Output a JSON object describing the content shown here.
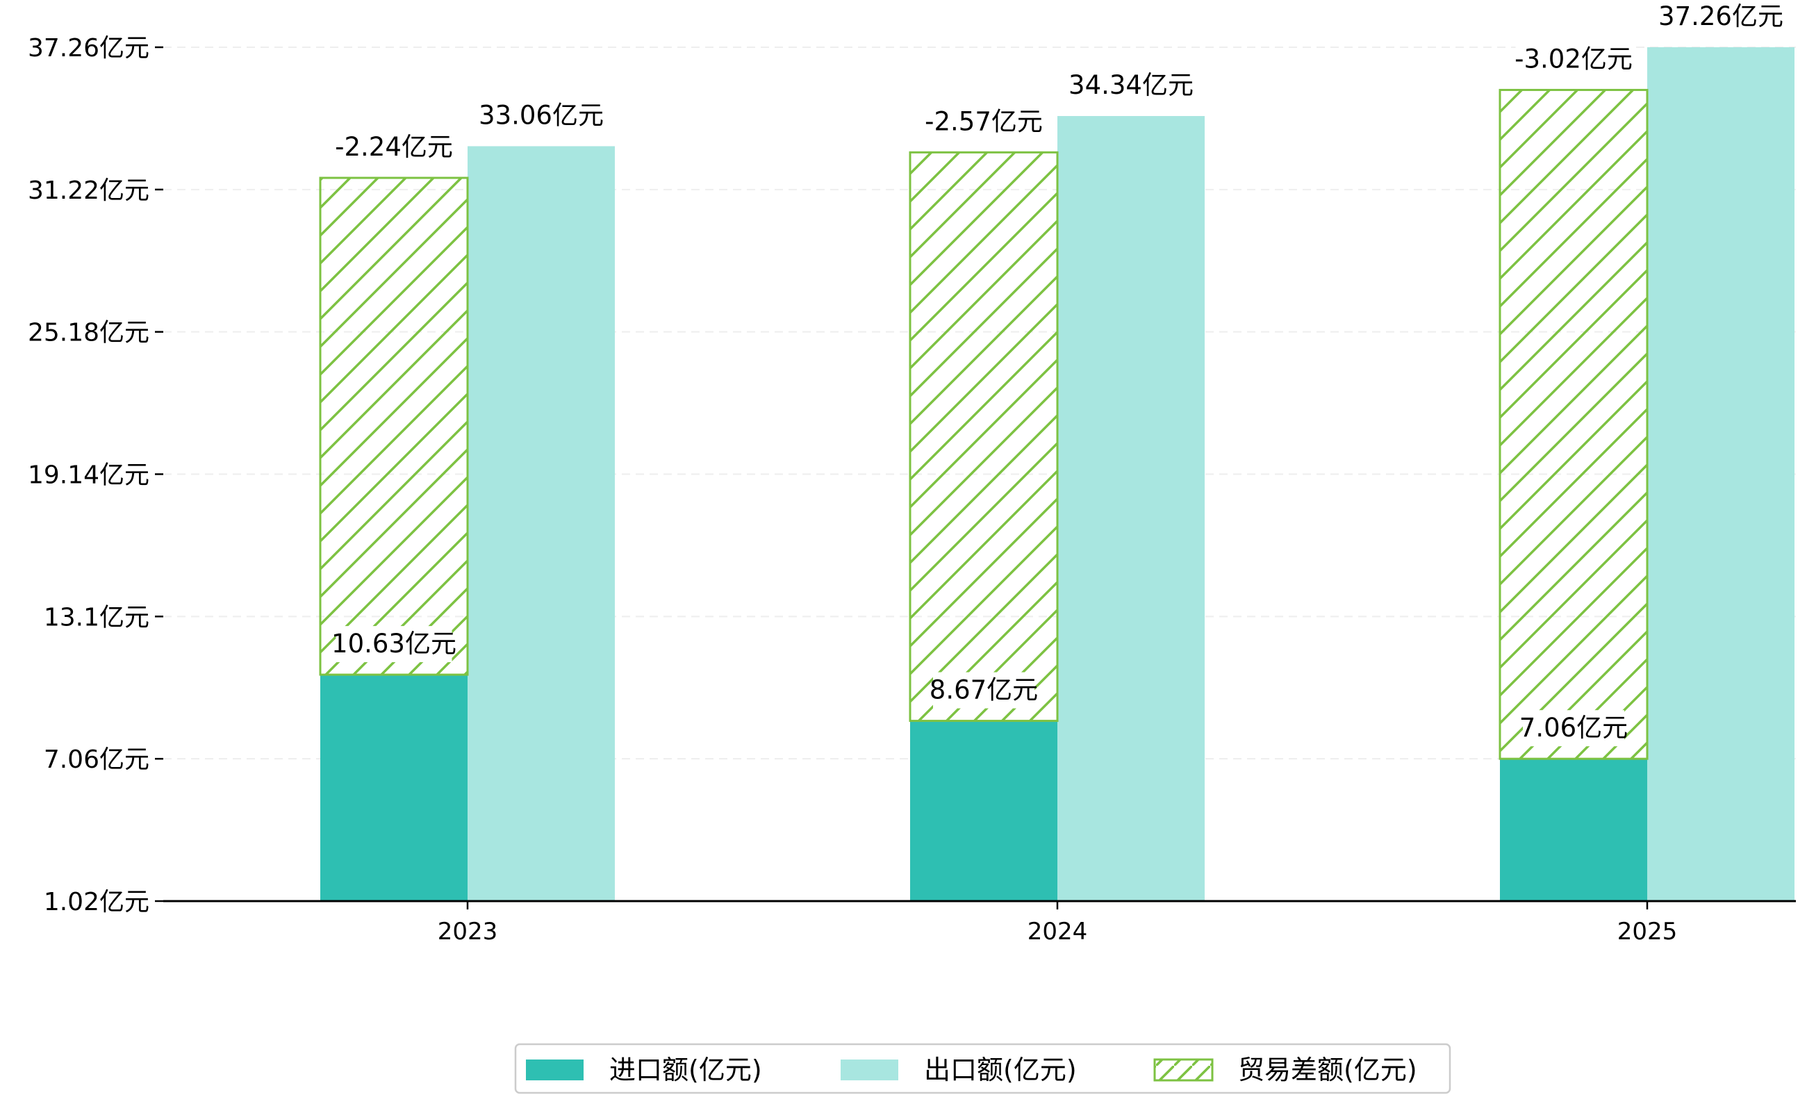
{
  "chart_data": {
    "type": "bar",
    "categories": [
      "2023",
      "2024",
      "2025"
    ],
    "unit_suffix": "亿元",
    "series": [
      {
        "name": "进口额(亿元)",
        "key": "import",
        "values": [
          10.63,
          8.67,
          7.06
        ],
        "color": "#2ebfb2",
        "labels": [
          "10.63亿元",
          "8.67亿元",
          "7.06亿元"
        ]
      },
      {
        "name": "出口额(亿元)",
        "key": "export",
        "values": [
          33.06,
          34.34,
          37.26
        ],
        "color": "#a8e6e0",
        "labels": [
          "33.06亿元",
          "34.34亿元",
          "37.26亿元"
        ]
      },
      {
        "name": "贸易差额(亿元)",
        "key": "balance",
        "values": [
          -2.24,
          -2.57,
          -3.02
        ],
        "color": "#7dc242",
        "pattern": "hatch",
        "labels": [
          "-2.24亿元",
          "-2.57亿元",
          "-3.02亿元"
        ]
      }
    ],
    "y_ticks": [
      1.02,
      7.06,
      13.1,
      19.14,
      25.18,
      31.22,
      37.26
    ],
    "y_tick_labels": [
      "1.02亿元",
      "7.06亿元",
      "13.1亿元",
      "19.14亿元",
      "25.18亿元",
      "31.22亿元",
      "37.26亿元"
    ],
    "ylim": [
      1.02,
      37.26
    ],
    "grid": "horizontal dashed",
    "legend_position": "bottom-center",
    "axis_color": "#000000",
    "grid_color": "#eeeeee"
  }
}
